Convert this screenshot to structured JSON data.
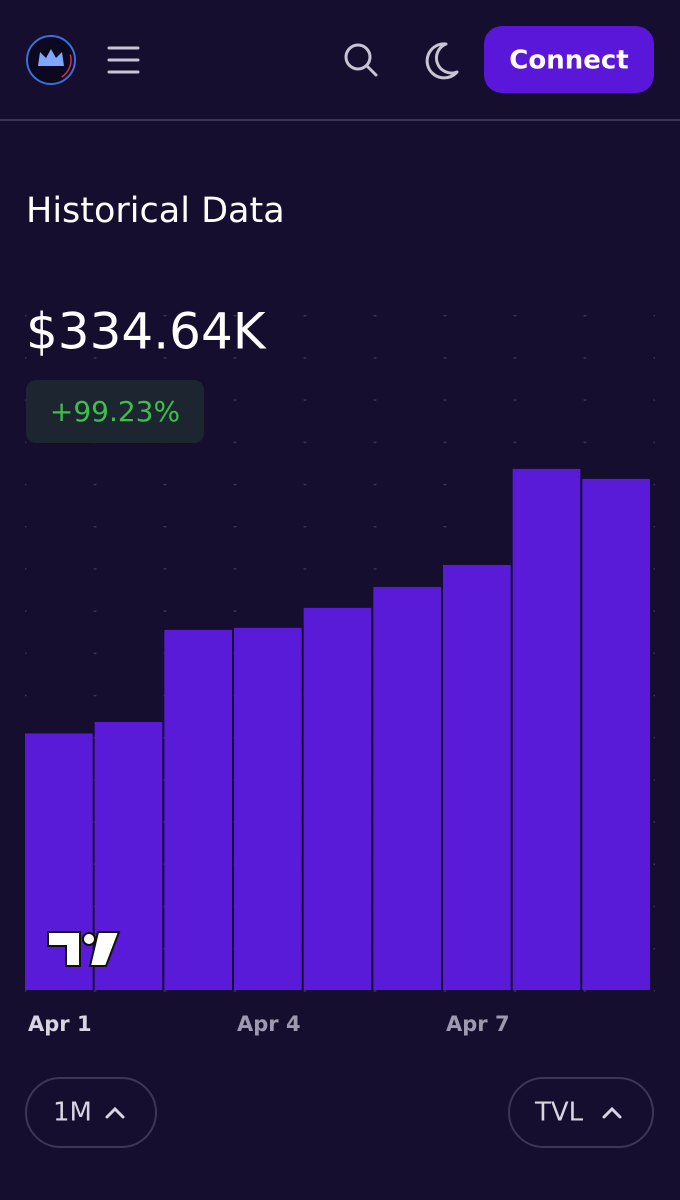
{
  "header": {
    "button": "Connect"
  },
  "title": "Historical Data",
  "summary": {
    "value": "$334.64K",
    "change": "+99.23%"
  },
  "chart_data": {
    "type": "bar",
    "categories": [
      "Apr 1",
      null,
      null,
      "Apr 4",
      null,
      null,
      "Apr 7",
      null,
      null
    ],
    "values": [
      168000,
      175500,
      235800,
      237100,
      250200,
      263900,
      278300,
      341200,
      334640
    ],
    "color": "#5a1bd8",
    "ylim": [
      0,
      440000
    ]
  },
  "controls": {
    "range": "1M",
    "metric": "TVL"
  }
}
